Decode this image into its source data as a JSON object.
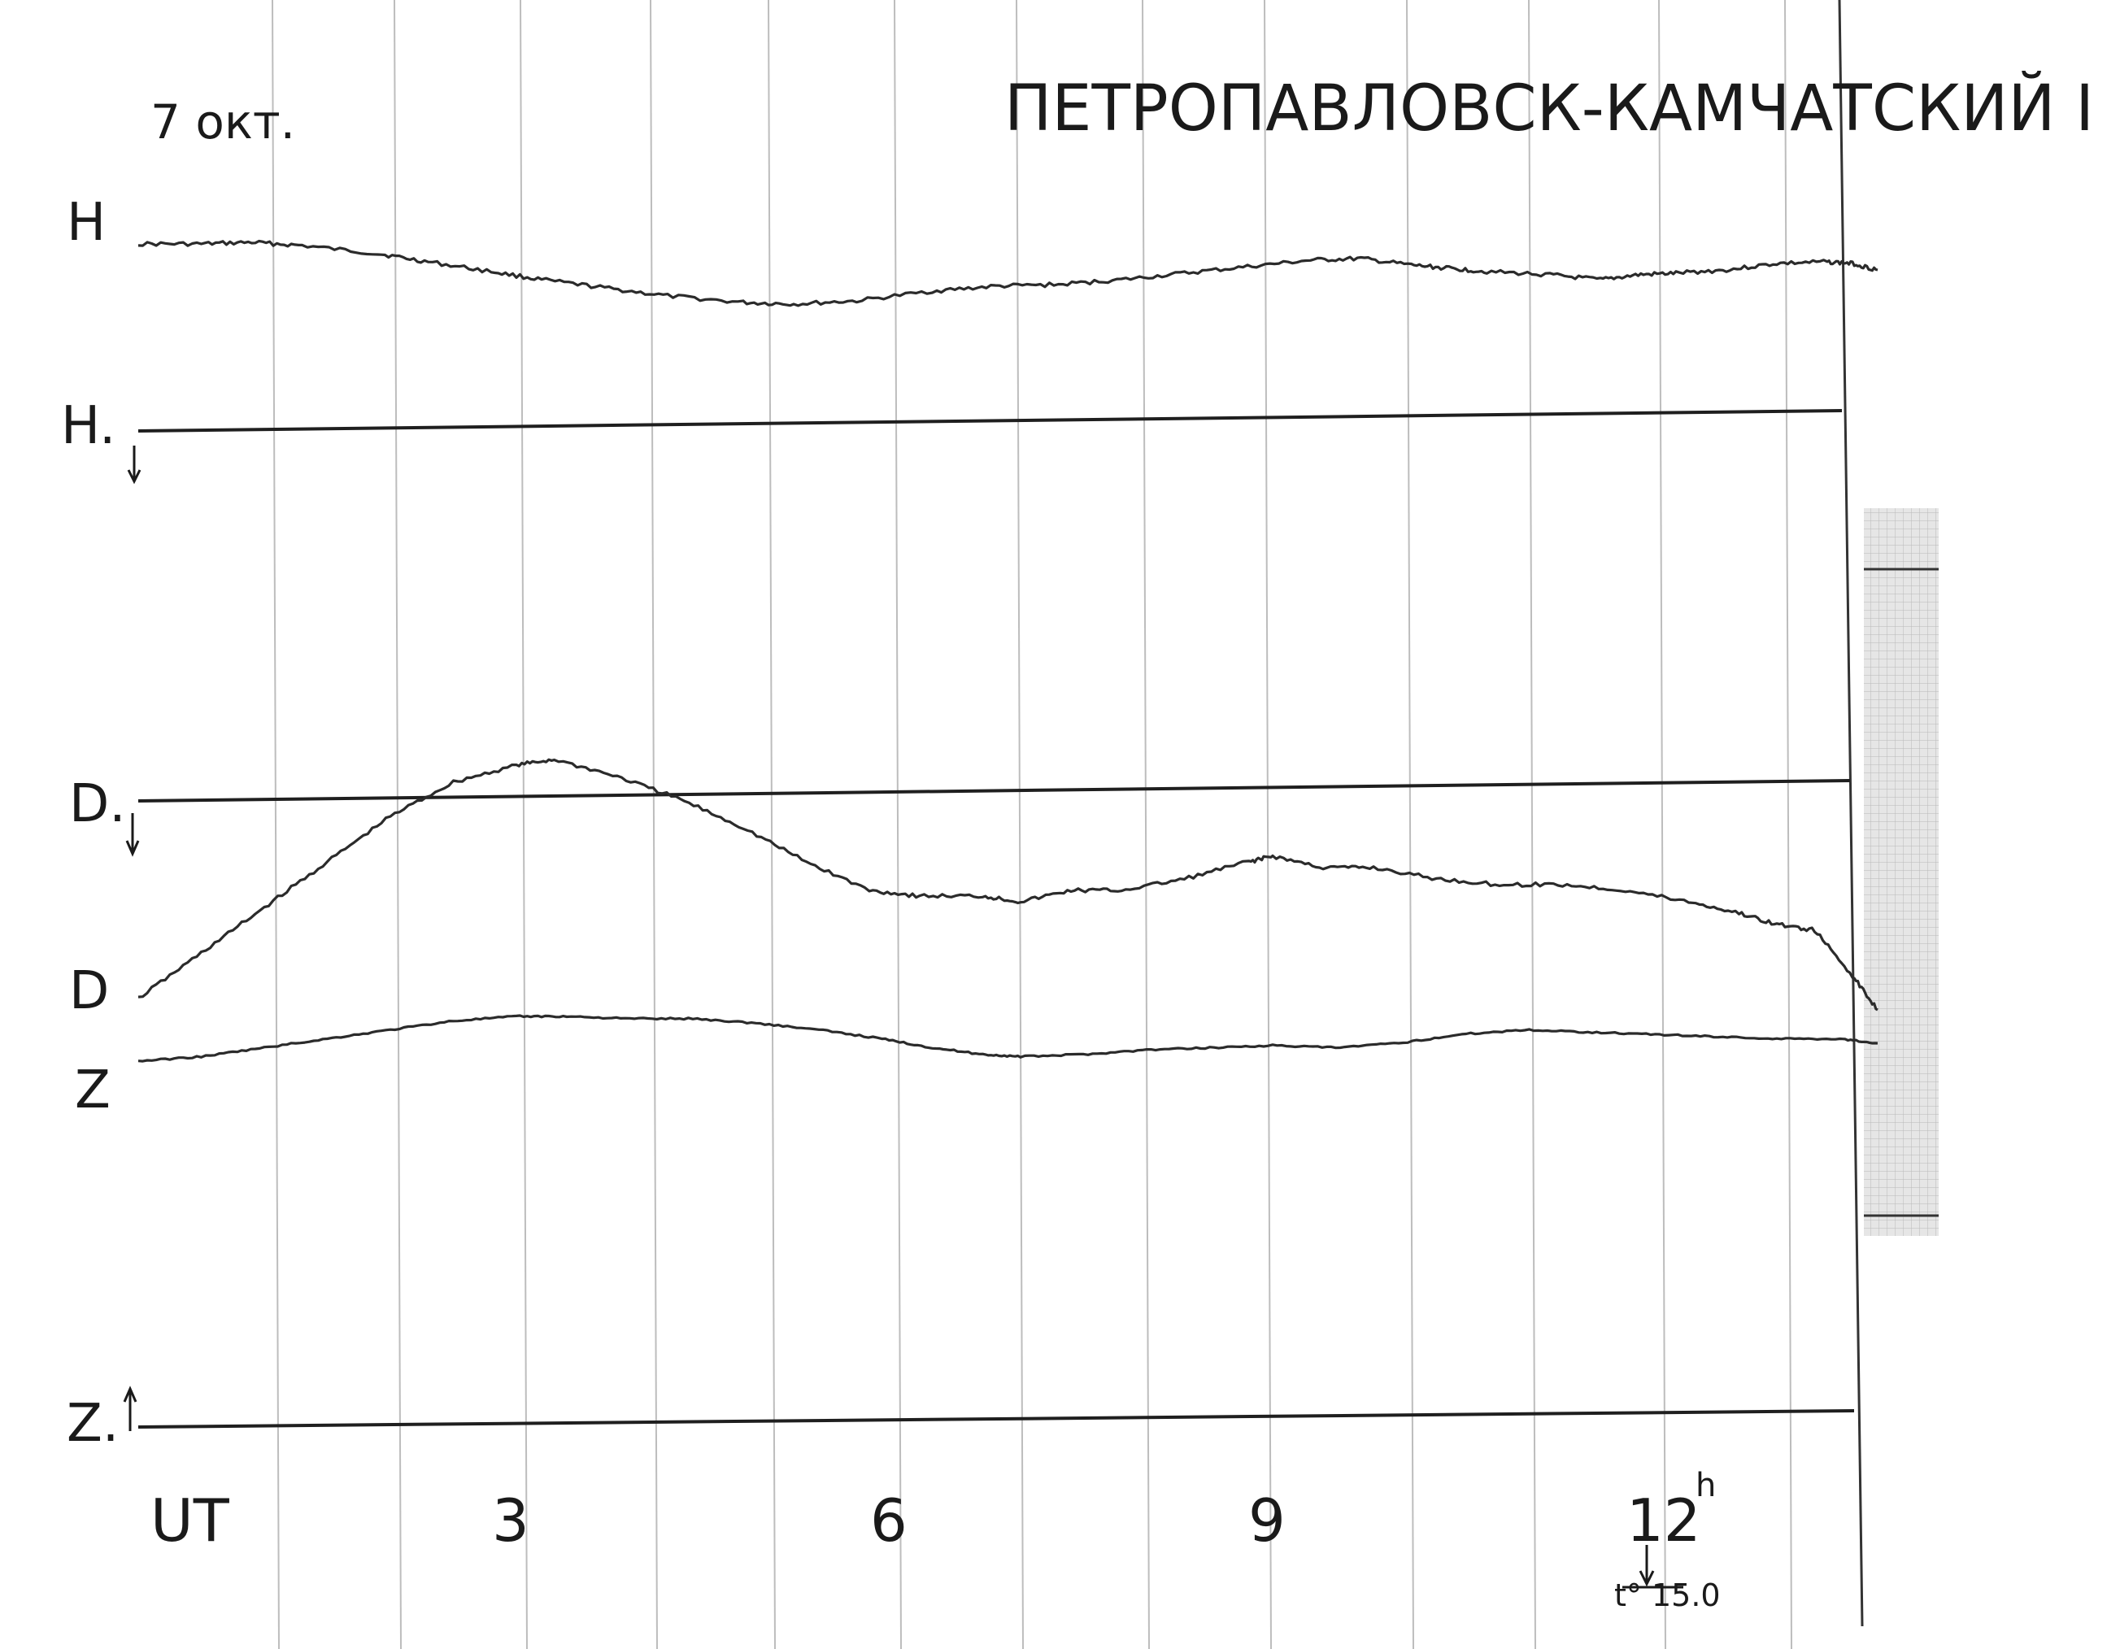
{
  "header": {
    "date": "7 окт.",
    "station": "ПЕТРОПАВЛОВСК-КАМЧАТСКИЙ I"
  },
  "chart_data": {
    "type": "line",
    "title": "ПЕТРОПАВЛОВСК-КАМЧАТСКИЙ I",
    "date_label": "7 окт.",
    "xlabel": "UT",
    "x_ticks": [
      {
        "x": 3,
        "label": "3"
      },
      {
        "x": 6,
        "label": "6"
      },
      {
        "x": 9,
        "label": "9"
      },
      {
        "x": 12,
        "label": "12",
        "sup": "h"
      }
    ],
    "xlim": [
      0,
      14
    ],
    "grid": true,
    "annotation": {
      "x": 12,
      "label": "t° 15.0"
    },
    "baseline_labels": {
      "H": "H.",
      "D": "D.",
      "Z": "Z."
    },
    "series": [
      {
        "name": "H",
        "baseline": "H.",
        "x": [
          0,
          0.5,
          0.9,
          1.3,
          1.9,
          2.3,
          2.8,
          3.2,
          3.7,
          4.2,
          4.8,
          5.2,
          5.7,
          6.3,
          6.8,
          7.3,
          7.8,
          8.3,
          8.8,
          9.3,
          9.7,
          10.1,
          10.4,
          10.7,
          11.2,
          11.6,
          11.9,
          12.2,
          12.6,
          13.0,
          13.4,
          13.6,
          13.8
        ],
        "y": [
          8.0,
          8.0,
          8.1,
          7.9,
          7.4,
          6.9,
          6.3,
          5.8,
          5.3,
          4.8,
          4.4,
          4.3,
          4.5,
          5.1,
          5.4,
          5.5,
          5.8,
          6.2,
          6.6,
          7.0,
          7.1,
          6.7,
          6.5,
          6.3,
          6.1,
          5.8,
          6.1,
          6.2,
          6.4,
          6.8,
          6.9,
          6.8,
          6.4
        ]
      },
      {
        "name": "D",
        "baseline": "D.",
        "x": [
          0,
          0.5,
          1.0,
          1.5,
          2.0,
          2.5,
          3.0,
          3.3,
          3.8,
          4.3,
          4.8,
          5.3,
          5.8,
          6.2,
          6.7,
          7.0,
          7.4,
          7.8,
          8.3,
          8.8,
          9.0,
          9.4,
          9.8,
          10.3,
          10.8,
          11.3,
          11.8,
          12.3,
          12.7,
          13.0,
          13.3,
          13.6,
          13.8
        ],
        "y": [
          1.6,
          2.4,
          3.2,
          4.0,
          4.8,
          5.4,
          5.7,
          5.8,
          5.5,
          5.1,
          4.6,
          4.0,
          3.5,
          3.4,
          3.4,
          3.3,
          3.5,
          3.5,
          3.7,
          4.0,
          4.1,
          3.9,
          3.9,
          3.7,
          3.6,
          3.6,
          3.5,
          3.3,
          3.1,
          2.9,
          2.8,
          2.0,
          1.4
        ]
      },
      {
        "name": "Z",
        "baseline": "Z.",
        "x": [
          0,
          0.5,
          1.0,
          1.5,
          2.0,
          2.5,
          3.0,
          3.4,
          3.9,
          4.4,
          4.9,
          5.4,
          5.9,
          6.3,
          6.7,
          7.0,
          7.5,
          8.0,
          8.5,
          9.0,
          9.5,
          10.0,
          10.5,
          11.0,
          11.5,
          12.0,
          12.5,
          13.0,
          13.5,
          13.8
        ],
        "y": [
          5.0,
          5.1,
          5.3,
          5.5,
          5.7,
          5.9,
          6.0,
          6.0,
          5.95,
          5.95,
          5.85,
          5.7,
          5.5,
          5.3,
          5.15,
          5.1,
          5.15,
          5.25,
          5.3,
          5.35,
          5.3,
          5.4,
          5.6,
          5.7,
          5.65,
          5.6,
          5.55,
          5.5,
          5.5,
          5.4
        ]
      }
    ]
  }
}
